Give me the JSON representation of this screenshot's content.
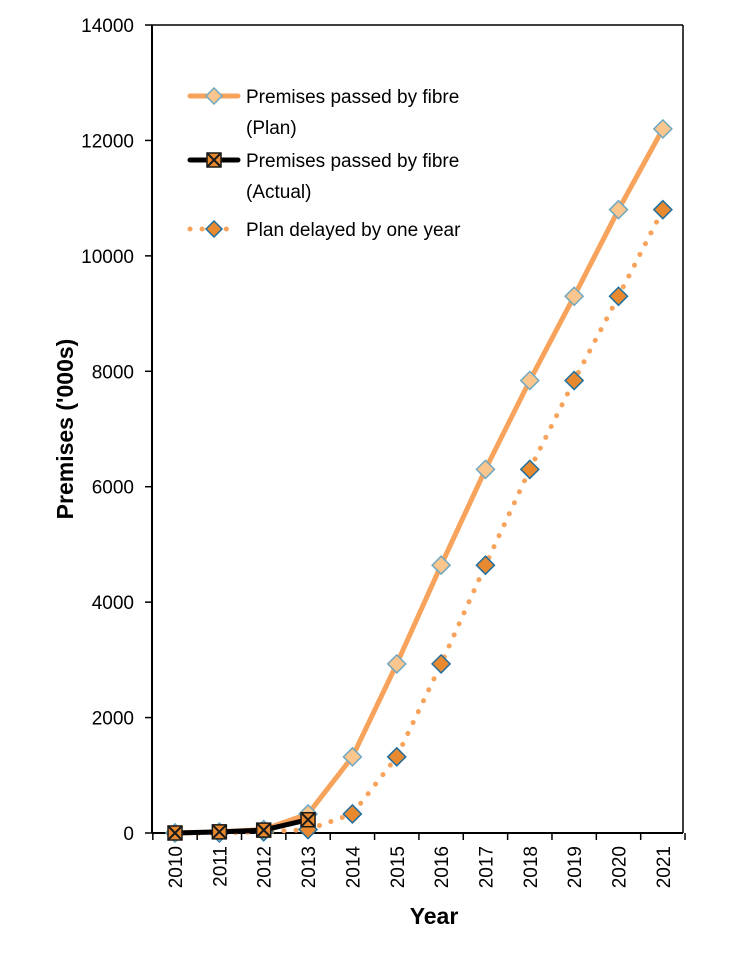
{
  "chart_data": {
    "type": "line",
    "title": "",
    "xlabel": "Year",
    "ylabel": "Premises ('000s)",
    "categories": [
      "2010",
      "2011",
      "2012",
      "2013",
      "2014",
      "2015",
      "2016",
      "2017",
      "2018",
      "2019",
      "2020",
      "2021"
    ],
    "ylim": [
      0,
      14000
    ],
    "yticks": [
      "0",
      "2000",
      "4000",
      "6000",
      "8000",
      "10000",
      "12000",
      "14000"
    ],
    "grid": false,
    "legend_position": "top-left",
    "series": [
      {
        "name": "Premises passed by fibre (Plan)",
        "legend_lines": [
          "Premises passed by fibre",
          "(Plan)"
        ],
        "style": "solid",
        "color": "#F7A35C",
        "marker": "diamond",
        "marker_fill": "#FBC58E",
        "marker_stroke": "#6FA8C0",
        "values": [
          0,
          20,
          60,
          330,
          1320,
          2930,
          4640,
          6300,
          7840,
          9300,
          10800,
          12200
        ]
      },
      {
        "name": "Premises passed by fibre (Actual)",
        "legend_lines": [
          "Premises passed by fibre",
          "(Actual)"
        ],
        "style": "solid",
        "color": "#000000",
        "marker": "x-square",
        "marker_fill": "#E8892F",
        "marker_stroke": "#1a1a1a",
        "values": [
          0,
          20,
          50,
          230,
          null,
          null,
          null,
          null,
          null,
          null,
          null,
          null
        ]
      },
      {
        "name": "Plan delayed by one year",
        "legend_lines": [
          "Plan delayed by one year"
        ],
        "style": "dotted",
        "color": "#F7A35C",
        "marker": "diamond",
        "marker_fill": "#E8892F",
        "marker_stroke": "#1f6fa0",
        "values": [
          0,
          0,
          20,
          60,
          330,
          1320,
          2930,
          4640,
          6300,
          7840,
          9300,
          10800
        ]
      }
    ]
  }
}
